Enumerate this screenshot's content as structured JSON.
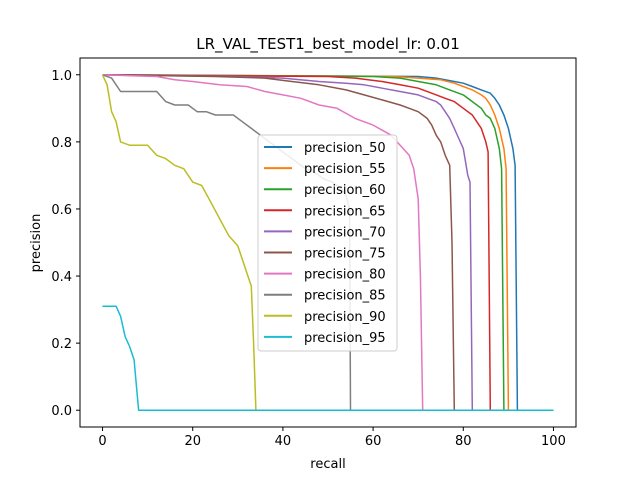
{
  "chart_data": {
    "type": "line",
    "title": "LR_VAL_TEST1_best_model_lr: 0.01",
    "xlabel": "recall",
    "ylabel": "precision",
    "xlim": [
      -5,
      105
    ],
    "ylim": [
      -0.05,
      1.05
    ],
    "xticks": [
      "0",
      "20",
      "40",
      "60",
      "80",
      "100"
    ],
    "yticks": [
      "0.0",
      "0.2",
      "0.4",
      "0.6",
      "0.8",
      "1.0"
    ],
    "grid": false,
    "legend_position": "center",
    "series": [
      {
        "name": "precision_50",
        "color": "#1f77b4",
        "x": [
          0,
          70,
          74,
          78,
          80,
          82,
          84,
          86,
          87,
          88,
          89,
          90,
          91,
          91.5,
          92,
          100
        ],
        "y": [
          1.0,
          0.995,
          0.99,
          0.98,
          0.975,
          0.965,
          0.955,
          0.945,
          0.93,
          0.91,
          0.88,
          0.84,
          0.78,
          0.73,
          0.0,
          0.0
        ]
      },
      {
        "name": "precision_55",
        "color": "#ff7f0e",
        "x": [
          0,
          65,
          70,
          75,
          78,
          80,
          82,
          84,
          85,
          86,
          87,
          88,
          89,
          89.5,
          90,
          100
        ],
        "y": [
          1.0,
          0.995,
          0.99,
          0.985,
          0.975,
          0.965,
          0.955,
          0.94,
          0.93,
          0.91,
          0.88,
          0.84,
          0.78,
          0.72,
          0.0,
          0.0
        ]
      },
      {
        "name": "precision_60",
        "color": "#2ca02c",
        "x": [
          0,
          60,
          66,
          70,
          74,
          77,
          80,
          82,
          84,
          85,
          86,
          87,
          88,
          88.5,
          89,
          100
        ],
        "y": [
          1.0,
          0.995,
          0.99,
          0.98,
          0.97,
          0.955,
          0.94,
          0.92,
          0.9,
          0.88,
          0.87,
          0.84,
          0.78,
          0.72,
          0.0,
          0.0
        ]
      },
      {
        "name": "precision_65",
        "color": "#d62728",
        "x": [
          0,
          50,
          56,
          62,
          66,
          70,
          73,
          76,
          78,
          80,
          82,
          83,
          84,
          85,
          85.5,
          86,
          100
        ],
        "y": [
          1.0,
          0.995,
          0.99,
          0.98,
          0.97,
          0.96,
          0.945,
          0.93,
          0.92,
          0.9,
          0.88,
          0.86,
          0.84,
          0.8,
          0.77,
          0.0,
          0.0
        ]
      },
      {
        "name": "precision_70",
        "color": "#9467bd",
        "x": [
          0,
          30,
          40,
          48,
          54,
          58,
          62,
          66,
          70,
          72,
          74,
          75,
          76,
          77,
          78,
          79,
          80,
          81,
          81.5,
          82,
          100
        ],
        "y": [
          1.0,
          0.995,
          0.99,
          0.98,
          0.975,
          0.97,
          0.96,
          0.95,
          0.94,
          0.93,
          0.92,
          0.91,
          0.89,
          0.87,
          0.84,
          0.81,
          0.78,
          0.7,
          0.68,
          0.0,
          0.0
        ]
      },
      {
        "name": "precision_75",
        "color": "#8c564b",
        "x": [
          0,
          25,
          36,
          42,
          48,
          54,
          58,
          62,
          66,
          68,
          70,
          72,
          73,
          74,
          75,
          76,
          77,
          77.5,
          78,
          100
        ],
        "y": [
          1.0,
          0.995,
          0.99,
          0.98,
          0.97,
          0.955,
          0.94,
          0.925,
          0.91,
          0.9,
          0.89,
          0.87,
          0.85,
          0.82,
          0.8,
          0.76,
          0.73,
          0.5,
          0.0,
          0.0
        ]
      },
      {
        "name": "precision_80",
        "color": "#e377c2",
        "x": [
          0,
          12,
          16,
          20,
          26,
          32,
          36,
          40,
          44,
          48,
          52,
          56,
          60,
          64,
          66,
          68,
          69,
          70,
          70.5,
          71,
          100
        ],
        "y": [
          1.0,
          0.995,
          0.985,
          0.98,
          0.97,
          0.965,
          0.95,
          0.94,
          0.93,
          0.91,
          0.9,
          0.87,
          0.85,
          0.82,
          0.79,
          0.76,
          0.72,
          0.63,
          0.4,
          0.0,
          0.0
        ]
      },
      {
        "name": "precision_85",
        "color": "#7f7f7f",
        "x": [
          0,
          2,
          4,
          8,
          12,
          14,
          16,
          19,
          21,
          23,
          25,
          27,
          29,
          31,
          33,
          35,
          37,
          39,
          41,
          43,
          45,
          47,
          49,
          51,
          53,
          54,
          54.8,
          55,
          100
        ],
        "y": [
          1.0,
          0.99,
          0.95,
          0.95,
          0.95,
          0.92,
          0.91,
          0.91,
          0.89,
          0.89,
          0.88,
          0.88,
          0.88,
          0.86,
          0.84,
          0.82,
          0.8,
          0.78,
          0.76,
          0.74,
          0.72,
          0.71,
          0.69,
          0.68,
          0.66,
          0.64,
          0.6,
          0.0,
          0.0
        ]
      },
      {
        "name": "precision_90",
        "color": "#bcbd22",
        "x": [
          0,
          1,
          2,
          3,
          4,
          6,
          8,
          10,
          12,
          14,
          16,
          18,
          20,
          22,
          24,
          26,
          28,
          30,
          31,
          32,
          33,
          33.5,
          34,
          100
        ],
        "y": [
          1.0,
          0.97,
          0.89,
          0.86,
          0.8,
          0.79,
          0.79,
          0.79,
          0.76,
          0.75,
          0.73,
          0.72,
          0.68,
          0.67,
          0.62,
          0.57,
          0.52,
          0.49,
          0.45,
          0.41,
          0.37,
          0.2,
          0.0,
          0.0
        ]
      },
      {
        "name": "precision_95",
        "color": "#17becf",
        "x": [
          0,
          1,
          3,
          4,
          5,
          6,
          7,
          8,
          100
        ],
        "y": [
          0.31,
          0.31,
          0.31,
          0.28,
          0.22,
          0.19,
          0.15,
          0.0,
          0.0
        ]
      }
    ]
  }
}
